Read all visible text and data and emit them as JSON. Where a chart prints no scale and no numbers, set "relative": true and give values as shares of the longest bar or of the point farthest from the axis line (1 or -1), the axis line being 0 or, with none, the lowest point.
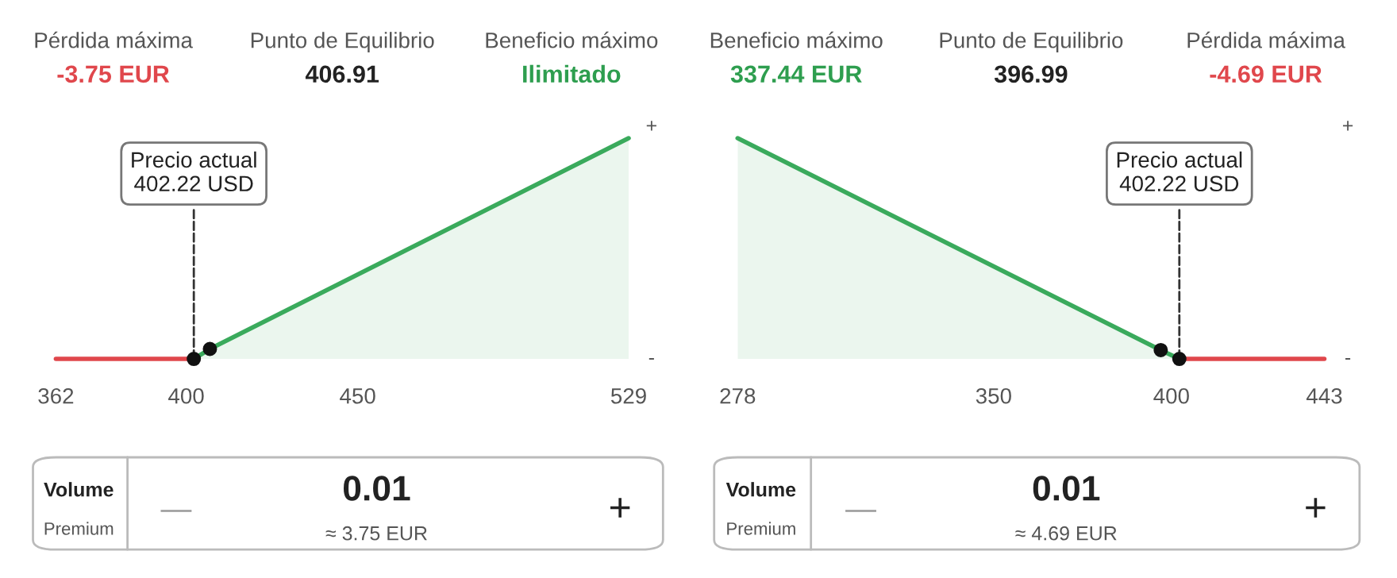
{
  "chart_data": [
    {
      "type": "line",
      "relative": true,
      "xlim": [
        362,
        529
      ],
      "xticks": [
        362,
        400,
        450,
        529
      ],
      "legend": false,
      "grid": false,
      "series": [
        {
          "color": "#e0474c",
          "x": [
            362,
            402.22
          ],
          "values": [
            0,
            0
          ]
        },
        {
          "type": "area",
          "color": "#3aaa5c",
          "x": [
            402.22,
            406.91,
            529
          ],
          "values": [
            0,
            0.045,
            1
          ]
        },
        {
          "type": "scatter",
          "color": "#111111",
          "x": [
            402.22,
            406.91
          ],
          "values": [
            0,
            0.045
          ]
        }
      ],
      "annotations": [
        "Pérdida máxima",
        "Punto de Equilibrio",
        "Beneficio máximo",
        "-3.75 EUR",
        "406.91",
        "Ilimitado",
        "+",
        "-",
        "Volume",
        "Premium",
        "—",
        "0.01",
        "≈ 3.75 EUR",
        "+",
        {
          "text": "Precio actual\n402.22 USD",
          "x": 402.22,
          "y": 0
        }
      ]
    },
    {
      "type": "line",
      "relative": true,
      "xlim": [
        278,
        443
      ],
      "xticks": [
        278,
        350,
        400,
        443
      ],
      "legend": false,
      "grid": false,
      "series": [
        {
          "type": "area",
          "color": "#3aaa5c",
          "x": [
            278,
            396.99,
            402.22
          ],
          "values": [
            1,
            0.04,
            0
          ]
        },
        {
          "color": "#e0474c",
          "x": [
            402.22,
            443
          ],
          "values": [
            0,
            0
          ]
        },
        {
          "type": "scatter",
          "color": "#111111",
          "x": [
            396.99,
            402.22
          ],
          "values": [
            0.04,
            0
          ]
        }
      ],
      "annotations": [
        "Beneficio máximo",
        "Punto de Equilibrio",
        "Pérdida máxima",
        "337.44 EUR",
        "396.99",
        "-4.69 EUR",
        "+",
        "-",
        "Volume",
        "Premium",
        "—",
        "0.01",
        "≈ 4.69 EUR",
        "+",
        {
          "text": "Precio actual\n402.22 USD",
          "x": 402.22,
          "y": 0
        }
      ]
    }
  ]
}
